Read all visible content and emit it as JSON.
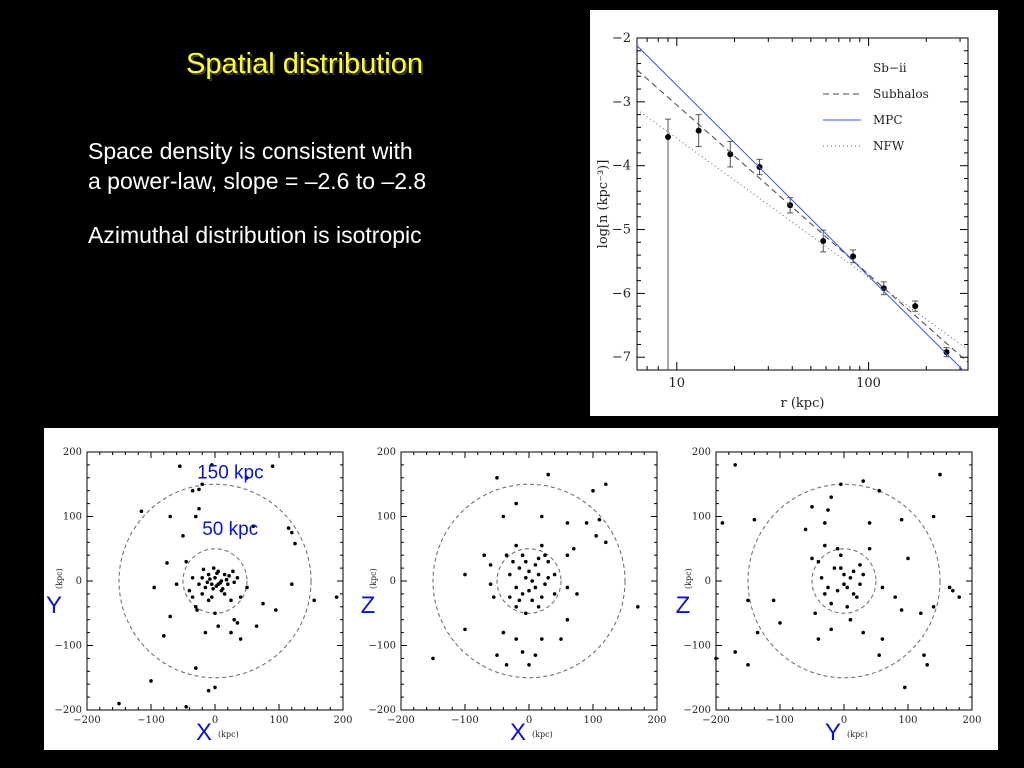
{
  "slide": {
    "title": "Spatial distribution",
    "bullets": [
      "Space density is consistent with\na power-law, slope = –2.6 to –2.8",
      "Azimuthal distribution is isotropic"
    ]
  },
  "colors": {
    "title": "#ffff33",
    "axis_labels": "#0a14c8",
    "mpc_line": "#3355ee"
  },
  "chart_data": [
    {
      "type": "line",
      "xlabel": "r (kpc)",
      "ylabel": "log[n (kpc⁻³)]",
      "xscale": "log",
      "xlim": [
        6.2,
        330
      ],
      "ylim": [
        -7.2,
        -2
      ],
      "xticks": [
        10,
        100
      ],
      "yticks": [
        -2,
        -3,
        -4,
        -5,
        -6,
        -7
      ],
      "legend_position": "top-right",
      "series": [
        {
          "name": "Sb−ii",
          "style": "points-with-errorbars",
          "x": [
            9,
            13,
            19,
            27,
            39,
            58,
            83,
            120,
            175,
            255
          ],
          "y": [
            -3.55,
            -3.45,
            -3.82,
            -4.02,
            -4.62,
            -5.18,
            -5.42,
            -5.92,
            -6.2,
            -6.92
          ],
          "err": [
            0.28,
            0.25,
            0.2,
            0.12,
            0.12,
            0.17,
            0.1,
            0.1,
            0.08,
            0.07
          ],
          "lower_limit_first": true
        },
        {
          "name": "Subhalos",
          "style": "dashed",
          "x": [
            6.2,
            330
          ],
          "y": [
            -2.5,
            -7.08
          ]
        },
        {
          "name": "MPC",
          "style": "solid",
          "x": [
            6.2,
            330
          ],
          "y": [
            -2.12,
            -7.28
          ]
        },
        {
          "name": "NFW",
          "style": "dotted",
          "x": [
            6.2,
            330
          ],
          "y": [
            -3.12,
            -6.88
          ]
        }
      ]
    },
    {
      "type": "scatter",
      "xlabel": "X",
      "ylabel": "Y",
      "unit": "(kpc)",
      "xlim": [
        -200,
        200
      ],
      "ylim": [
        -200,
        200
      ],
      "ticks": [
        -200,
        -100,
        0,
        100,
        200
      ],
      "circles": [
        {
          "radius": 150,
          "label": "150 kpc"
        },
        {
          "radius": 50,
          "label": "50 kpc"
        }
      ],
      "points": [
        [
          -55,
          178
        ],
        [
          -35,
          140
        ],
        [
          -25,
          142
        ],
        [
          -20,
          150
        ],
        [
          -5,
          180
        ],
        [
          50,
          160
        ],
        [
          90,
          178
        ],
        [
          -115,
          108
        ],
        [
          -70,
          100
        ],
        [
          -50,
          70
        ],
        [
          -30,
          100
        ],
        [
          -25,
          112
        ],
        [
          -75,
          28
        ],
        [
          -95,
          -10
        ],
        [
          -60,
          -5
        ],
        [
          -45,
          30
        ],
        [
          -40,
          -15
        ],
        [
          -35,
          5
        ],
        [
          -30,
          -40
        ],
        [
          -20,
          -20
        ],
        [
          -10,
          -30
        ],
        [
          -5,
          -25
        ],
        [
          0,
          -50
        ],
        [
          5,
          -5
        ],
        [
          10,
          -15
        ],
        [
          15,
          -20
        ],
        [
          20,
          -5
        ],
        [
          25,
          -30
        ],
        [
          30,
          -60
        ],
        [
          35,
          -65
        ],
        [
          40,
          -25
        ],
        [
          50,
          -10
        ],
        [
          65,
          -70
        ],
        [
          75,
          -35
        ],
        [
          95,
          -45
        ],
        [
          115,
          82
        ],
        [
          120,
          -5
        ],
        [
          120,
          75
        ],
        [
          125,
          58
        ],
        [
          0,
          -165
        ],
        [
          -10,
          -170
        ],
        [
          -30,
          -135
        ],
        [
          -45,
          -195
        ],
        [
          -100,
          -155
        ],
        [
          -150,
          -190
        ],
        [
          -80,
          -85
        ],
        [
          -15,
          -80
        ],
        [
          5,
          -70
        ],
        [
          25,
          -80
        ],
        [
          40,
          -90
        ],
        [
          -20,
          5
        ],
        [
          -10,
          10
        ],
        [
          -5,
          -5
        ],
        [
          0,
          5
        ],
        [
          5,
          15
        ],
        [
          10,
          0
        ],
        [
          15,
          10
        ],
        [
          -15,
          -10
        ],
        [
          -8,
          3
        ],
        [
          2,
          -8
        ],
        [
          18,
          2
        ],
        [
          22,
          8
        ],
        [
          -25,
          -5
        ],
        [
          -12,
          -2
        ],
        [
          3,
          12
        ],
        [
          8,
          -3
        ],
        [
          12,
          -12
        ],
        [
          -3,
          -12
        ],
        [
          28,
          15
        ],
        [
          -18,
          18
        ],
        [
          -2,
          20
        ],
        [
          30,
          -2
        ],
        [
          35,
          5
        ],
        [
          -35,
          -25
        ],
        [
          -28,
          -45
        ],
        [
          60,
          85
        ],
        [
          -70,
          -55
        ],
        [
          155,
          -30
        ],
        [
          190,
          -25
        ]
      ]
    },
    {
      "type": "scatter",
      "xlabel": "X",
      "ylabel": "Z",
      "unit": "(kpc)",
      "xlim": [
        -200,
        200
      ],
      "ylim": [
        -200,
        200
      ],
      "ticks": [
        -200,
        -100,
        0,
        100,
        200
      ],
      "circles": [
        {
          "radius": 150
        },
        {
          "radius": 50
        }
      ],
      "points": [
        [
          -50,
          160
        ],
        [
          30,
          165
        ],
        [
          100,
          140
        ],
        [
          120,
          150
        ],
        [
          -20,
          120
        ],
        [
          -40,
          100
        ],
        [
          20,
          100
        ],
        [
          90,
          90
        ],
        [
          110,
          95
        ],
        [
          -100,
          10
        ],
        [
          -70,
          40
        ],
        [
          -60,
          -5
        ],
        [
          -55,
          -25
        ],
        [
          -35,
          40
        ],
        [
          -30,
          10
        ],
        [
          -20,
          -10
        ],
        [
          -15,
          20
        ],
        [
          -10,
          -20
        ],
        [
          -5,
          5
        ],
        [
          0,
          15
        ],
        [
          0,
          -15
        ],
        [
          5,
          0
        ],
        [
          10,
          25
        ],
        [
          10,
          -10
        ],
        [
          15,
          10
        ],
        [
          20,
          -25
        ],
        [
          25,
          -5
        ],
        [
          30,
          5
        ],
        [
          -20,
          -40
        ],
        [
          40,
          10
        ],
        [
          -40,
          -80
        ],
        [
          -20,
          -90
        ],
        [
          -10,
          -110
        ],
        [
          0,
          -130
        ],
        [
          10,
          -115
        ],
        [
          20,
          -90
        ],
        [
          40,
          -20
        ],
        [
          60,
          -10
        ],
        [
          60,
          40
        ],
        [
          70,
          50
        ],
        [
          105,
          70
        ],
        [
          120,
          60
        ],
        [
          170,
          -40
        ],
        [
          -150,
          -120
        ],
        [
          -100,
          -75
        ],
        [
          -50,
          -115
        ],
        [
          -35,
          -130
        ],
        [
          50,
          -90
        ],
        [
          60,
          -60
        ],
        [
          -10,
          40
        ],
        [
          -5,
          30
        ],
        [
          5,
          -30
        ],
        [
          -25,
          30
        ],
        [
          -15,
          -30
        ],
        [
          15,
          -40
        ],
        [
          25,
          40
        ],
        [
          -30,
          -25
        ],
        [
          30,
          30
        ],
        [
          15,
          35
        ],
        [
          -20,
          55
        ],
        [
          20,
          55
        ],
        [
          -60,
          25
        ],
        [
          -5,
          -50
        ],
        [
          60,
          90
        ],
        [
          75,
          -20
        ]
      ]
    },
    {
      "type": "scatter",
      "xlabel": "Y",
      "ylabel": "Z",
      "unit": "(kpc)",
      "xlim": [
        -200,
        200
      ],
      "ylim": [
        -200,
        200
      ],
      "ticks": [
        -200,
        -100,
        0,
        100,
        200
      ],
      "circles": [
        {
          "radius": 150
        },
        {
          "radius": 50
        }
      ],
      "points": [
        [
          -170,
          180
        ],
        [
          -190,
          90
        ],
        [
          -140,
          95
        ],
        [
          -110,
          -30
        ],
        [
          -150,
          -30
        ],
        [
          -135,
          -80
        ],
        [
          -200,
          -120
        ],
        [
          -170,
          -110
        ],
        [
          -150,
          -130
        ],
        [
          -50,
          115
        ],
        [
          -25,
          110
        ],
        [
          -20,
          130
        ],
        [
          -30,
          90
        ],
        [
          -5,
          150
        ],
        [
          30,
          155
        ],
        [
          55,
          140
        ],
        [
          90,
          95
        ],
        [
          -60,
          80
        ],
        [
          40,
          90
        ],
        [
          140,
          100
        ],
        [
          -50,
          35
        ],
        [
          -40,
          30
        ],
        [
          -30,
          -20
        ],
        [
          -20,
          -35
        ],
        [
          -10,
          -15
        ],
        [
          -5,
          20
        ],
        [
          0,
          10
        ],
        [
          0,
          -5
        ],
        [
          5,
          -10
        ],
        [
          10,
          5
        ],
        [
          15,
          15
        ],
        [
          20,
          -25
        ],
        [
          25,
          -5
        ],
        [
          30,
          10
        ],
        [
          -35,
          5
        ],
        [
          -45,
          -50
        ],
        [
          60,
          -10
        ],
        [
          80,
          -25
        ],
        [
          90,
          -45
        ],
        [
          120,
          -50
        ],
        [
          140,
          -40
        ],
        [
          -100,
          -65
        ],
        [
          -40,
          -90
        ],
        [
          -20,
          -75
        ],
        [
          30,
          -80
        ],
        [
          60,
          -90
        ],
        [
          55,
          -115
        ],
        [
          95,
          -165
        ],
        [
          125,
          -115
        ],
        [
          130,
          -130
        ],
        [
          -5,
          40
        ],
        [
          5,
          -40
        ],
        [
          -15,
          20
        ],
        [
          15,
          -20
        ],
        [
          -25,
          -10
        ],
        [
          25,
          25
        ],
        [
          -10,
          50
        ],
        [
          40,
          50
        ],
        [
          -30,
          55
        ],
        [
          10,
          -60
        ],
        [
          165,
          -10
        ],
        [
          180,
          -25
        ],
        [
          150,
          165
        ],
        [
          170,
          -15
        ],
        [
          100,
          35
        ]
      ]
    }
  ]
}
